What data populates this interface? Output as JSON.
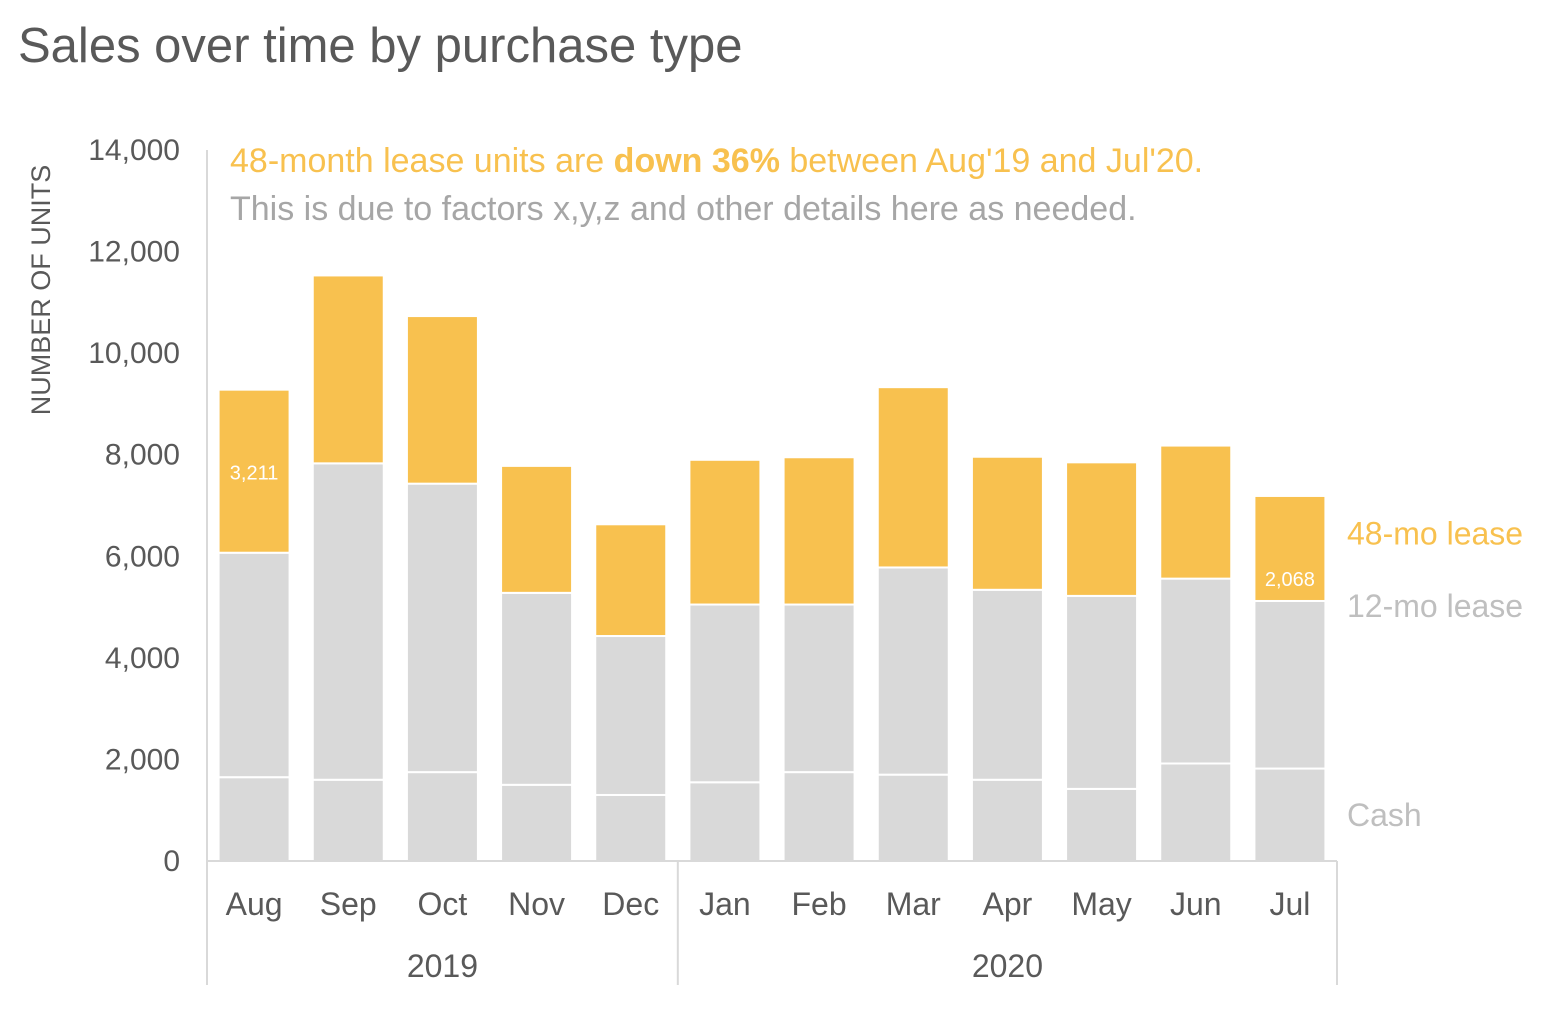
{
  "chart_data": {
    "type": "bar",
    "stacked": true,
    "title": "Sales over time by purchase type",
    "ylabel": "NUMBER OF UNITS",
    "ylim": [
      0,
      14000
    ],
    "yticks": [
      "0",
      "2,000",
      "4,000",
      "6,000",
      "8,000",
      "10,000",
      "12,000",
      "14,000"
    ],
    "categories": [
      "Aug",
      "Sep",
      "Oct",
      "Nov",
      "Dec",
      "Jan",
      "Feb",
      "Mar",
      "Apr",
      "May",
      "Jun",
      "Jul"
    ],
    "year_groups": [
      {
        "label": "2019",
        "count": 5
      },
      {
        "label": "2020",
        "count": 7
      }
    ],
    "series": [
      {
        "name": "Cash",
        "color": "#D9D9D9",
        "values": [
          1650,
          1600,
          1750,
          1500,
          1300,
          1550,
          1750,
          1700,
          1600,
          1420,
          1920,
          1820
        ]
      },
      {
        "name": "12-mo lease",
        "color": "#D9D9D9",
        "values": [
          4420,
          6230,
          5680,
          3780,
          3130,
          3500,
          3300,
          4080,
          3740,
          3800,
          3640,
          3300
        ]
      },
      {
        "name": "48-mo lease",
        "color": "#F8C14F",
        "values": [
          3211,
          3700,
          3300,
          2500,
          2200,
          2850,
          2900,
          3550,
          2620,
          2630,
          2620,
          2068
        ]
      }
    ],
    "data_labels": [
      {
        "category": "Aug",
        "series": "48-mo lease",
        "text": "3,211"
      },
      {
        "category": "Jul",
        "series": "48-mo lease",
        "text": "2,068"
      }
    ],
    "annotation": {
      "line1_pre": "48-month lease units are ",
      "line1_bold": "down 36%",
      "line1_post": " between Aug'19 and Jul'20.",
      "line2": "This is due to factors x,y,z and other details here as needed."
    },
    "legend_position": "right, inline with bars",
    "grid": false,
    "colors": {
      "accent": "#F8C14F",
      "muted": "#A6A6A6",
      "bar_gray": "#D9D9D9",
      "text": "#595959"
    }
  }
}
